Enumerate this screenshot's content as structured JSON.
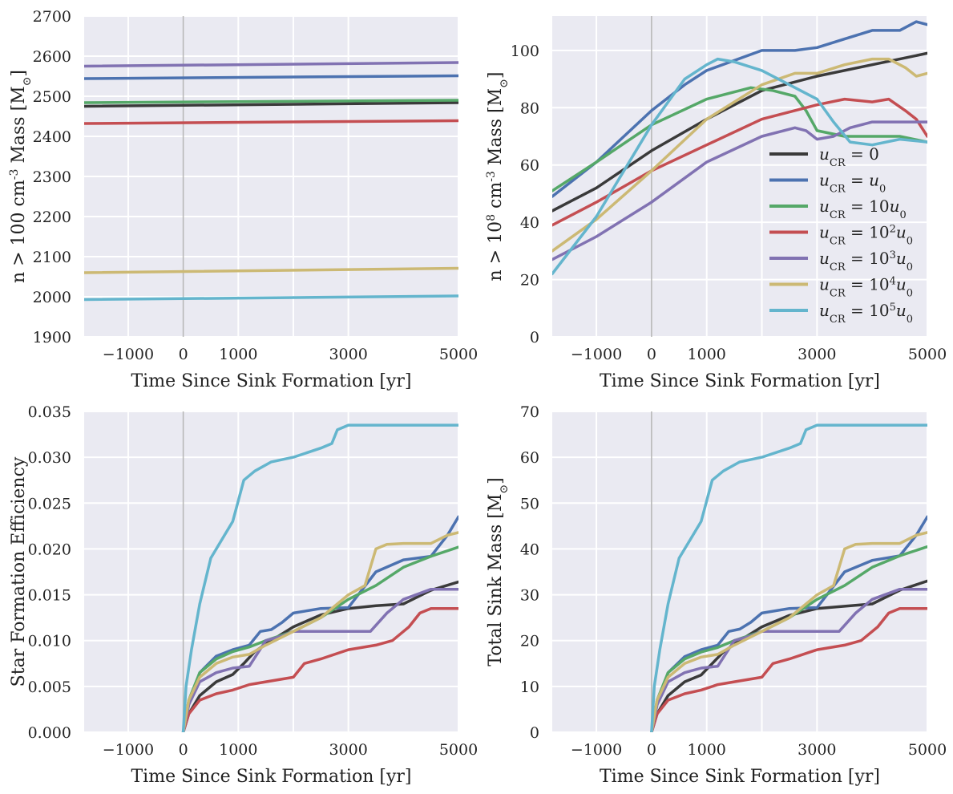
{
  "figure": {
    "colors": {
      "u0x": "#3a3a3a",
      "u1": "#4c72b0",
      "u10": "#55a868",
      "u100": "#c44e52",
      "u1000": "#8172b2",
      "u10000": "#ccb974",
      "u100000": "#64b5cd",
      "panel_bg": "#eaeaf2",
      "grid": "#ffffff",
      "zero_line": "#b8b8b8"
    },
    "legend": {
      "placement": "lower-right of top-right panel",
      "entries": [
        {
          "key": "u0x",
          "text": "u_CR = 0"
        },
        {
          "key": "u1",
          "text": "u_CR = u_0"
        },
        {
          "key": "u10",
          "text": "u_CR = 10u_0"
        },
        {
          "key": "u100",
          "text": "u_CR = 10^2u_0"
        },
        {
          "key": "u1000",
          "text": "u_CR = 10^3u_0"
        },
        {
          "key": "u10000",
          "text": "u_CR = 10^4u_0"
        },
        {
          "key": "u100000",
          "text": "u_CR = 10^5u_0"
        }
      ]
    }
  },
  "chart_data": [
    {
      "type": "line",
      "panel": "top-left",
      "xlabel": "Time Since Sink Formation [yr]",
      "ylabel": "n > 100 cm^-3 Mass [M_sun]",
      "xlim": [
        -1800,
        5000
      ],
      "ylim": [
        1900,
        2700
      ],
      "xticks": [
        -1000,
        0,
        1000,
        3000,
        5000
      ],
      "yticks": [
        1900,
        2000,
        2100,
        2200,
        2300,
        2400,
        2500,
        2600,
        2700
      ],
      "xgrid_extra": [
        2000
      ],
      "grid": true,
      "series": [
        {
          "key": "u0x",
          "x": [
            -1800,
            5000
          ],
          "y": [
            2475,
            2484
          ]
        },
        {
          "key": "u1",
          "x": [
            -1800,
            5000
          ],
          "y": [
            2544,
            2551
          ]
        },
        {
          "key": "u10",
          "x": [
            -1800,
            5000
          ],
          "y": [
            2484,
            2490
          ]
        },
        {
          "key": "u100",
          "x": [
            -1800,
            5000
          ],
          "y": [
            2432,
            2439
          ]
        },
        {
          "key": "u1000",
          "x": [
            -1800,
            5000
          ],
          "y": [
            2575,
            2584
          ]
        },
        {
          "key": "u10000",
          "x": [
            -1800,
            5000
          ],
          "y": [
            2060,
            2071
          ]
        },
        {
          "key": "u100000",
          "x": [
            -1800,
            5000
          ],
          "y": [
            1993,
            2002
          ]
        }
      ]
    },
    {
      "type": "line",
      "panel": "top-right",
      "xlabel": "Time Since Sink Formation [yr]",
      "ylabel": "n > 10^8 cm^-3 Mass [M_sun]",
      "xlim": [
        -1800,
        5000
      ],
      "ylim": [
        0,
        112
      ],
      "xticks": [
        -1000,
        0,
        1000,
        3000,
        5000
      ],
      "yticks": [
        0,
        20,
        40,
        60,
        80,
        100
      ],
      "xgrid_extra": [
        2000
      ],
      "grid": true,
      "series": [
        {
          "key": "u0x",
          "x": [
            -1800,
            -1000,
            0,
            1000,
            2000,
            3000,
            4000,
            5000
          ],
          "y": [
            44,
            52,
            65,
            76,
            86,
            91,
            95,
            99
          ]
        },
        {
          "key": "u1",
          "x": [
            -1800,
            -1000,
            0,
            600,
            1000,
            2000,
            2600,
            3000,
            3500,
            4000,
            4500,
            4800,
            5000
          ],
          "y": [
            49,
            61,
            79,
            88,
            93,
            100,
            100,
            101,
            104,
            107,
            107,
            110,
            109
          ]
        },
        {
          "key": "u10",
          "x": [
            -1800,
            -1000,
            0,
            1000,
            1800,
            2200,
            2600,
            2800,
            3000,
            3500,
            4000,
            4500,
            5000
          ],
          "y": [
            51,
            61,
            74,
            83,
            87,
            86,
            84,
            79,
            72,
            70,
            70,
            70,
            68
          ]
        },
        {
          "key": "u100",
          "x": [
            -1800,
            -1000,
            0,
            1000,
            2000,
            3000,
            3500,
            4000,
            4300,
            4600,
            4800,
            5000
          ],
          "y": [
            39,
            47,
            58,
            67,
            76,
            81,
            83,
            82,
            83,
            79,
            76,
            70
          ]
        },
        {
          "key": "u1000",
          "x": [
            -1800,
            -1000,
            0,
            1000,
            2000,
            2600,
            2800,
            3000,
            3300,
            3600,
            4000,
            4500,
            4800,
            5000
          ],
          "y": [
            27,
            35,
            47,
            61,
            70,
            73,
            72,
            69,
            70,
            73,
            75,
            75,
            75,
            75
          ]
        },
        {
          "key": "u10000",
          "x": [
            -1800,
            -1000,
            0,
            1000,
            2000,
            2600,
            3000,
            3500,
            4000,
            4300,
            4600,
            4800,
            5000
          ],
          "y": [
            30,
            41,
            58,
            76,
            88,
            92,
            92,
            95,
            97,
            97,
            94,
            91,
            92
          ]
        },
        {
          "key": "u100000",
          "x": [
            -1800,
            -1000,
            0,
            600,
            1000,
            1200,
            1500,
            2000,
            2500,
            3000,
            3300,
            3600,
            4000,
            4500,
            5000
          ],
          "y": [
            22,
            42,
            74,
            90,
            95,
            97,
            96,
            93,
            88,
            83,
            75,
            68,
            67,
            69,
            68
          ]
        }
      ]
    },
    {
      "type": "line",
      "panel": "bottom-left",
      "xlabel": "Time Since Sink Formation [yr]",
      "ylabel": "Star Formation Efficiency",
      "xlim": [
        -1800,
        5000
      ],
      "ylim": [
        0,
        0.035
      ],
      "xticks": [
        -1000,
        0,
        1000,
        3000,
        5000
      ],
      "yticks": [
        0.0,
        0.005,
        0.01,
        0.015,
        0.02,
        0.025,
        0.03,
        0.035
      ],
      "ytick_labels": [
        "0.000",
        "0.005",
        "0.010",
        "0.015",
        "0.020",
        "0.025",
        "0.030",
        "0.035"
      ],
      "xgrid_extra": [
        2000
      ],
      "grid": true,
      "series": [
        {
          "key": "u0x",
          "x": [
            0,
            100,
            300,
            600,
            900,
            1100,
            1300,
            1600,
            2000,
            2500,
            3000,
            3500,
            4000,
            4500,
            5000
          ],
          "y": [
            0,
            0.002,
            0.004,
            0.0055,
            0.0063,
            0.0075,
            0.0088,
            0.01,
            0.0115,
            0.0128,
            0.0135,
            0.0138,
            0.014,
            0.0155,
            0.0164
          ]
        },
        {
          "key": "u1",
          "x": [
            0,
            100,
            300,
            600,
            900,
            1200,
            1400,
            1600,
            1800,
            2000,
            2500,
            3000,
            3500,
            4000,
            4500,
            4800,
            5000
          ],
          "y": [
            0,
            0.003,
            0.0065,
            0.0083,
            0.009,
            0.0095,
            0.011,
            0.0112,
            0.012,
            0.013,
            0.0135,
            0.0136,
            0.0175,
            0.0188,
            0.0192,
            0.0215,
            0.0235
          ]
        },
        {
          "key": "u10",
          "x": [
            0,
            100,
            300,
            600,
            900,
            1200,
            1500,
            2000,
            2500,
            3000,
            3500,
            4000,
            4500,
            5000
          ],
          "y": [
            0,
            0.0035,
            0.0065,
            0.008,
            0.0088,
            0.0093,
            0.01,
            0.011,
            0.0125,
            0.0145,
            0.016,
            0.018,
            0.0192,
            0.0202
          ]
        },
        {
          "key": "u100",
          "x": [
            0,
            100,
            300,
            600,
            900,
            1200,
            1500,
            2000,
            2200,
            2500,
            3000,
            3500,
            3800,
            4100,
            4300,
            4500,
            5000
          ],
          "y": [
            0,
            0.002,
            0.0035,
            0.0042,
            0.0046,
            0.0052,
            0.0055,
            0.006,
            0.0075,
            0.008,
            0.009,
            0.0095,
            0.01,
            0.0115,
            0.013,
            0.0135,
            0.0135
          ]
        },
        {
          "key": "u1000",
          "x": [
            0,
            100,
            300,
            600,
            900,
            1200,
            1500,
            1800,
            2000,
            2500,
            3000,
            3400,
            3700,
            4000,
            4500,
            5000
          ],
          "y": [
            0,
            0.003,
            0.0055,
            0.0065,
            0.007,
            0.0072,
            0.01,
            0.0105,
            0.011,
            0.011,
            0.011,
            0.011,
            0.013,
            0.0145,
            0.0156,
            0.0156
          ]
        },
        {
          "key": "u10000",
          "x": [
            0,
            100,
            300,
            600,
            900,
            1200,
            1500,
            2000,
            2500,
            3000,
            3300,
            3500,
            3700,
            4000,
            4500,
            4800,
            5000
          ],
          "y": [
            0,
            0.0035,
            0.006,
            0.0075,
            0.0082,
            0.0085,
            0.0095,
            0.011,
            0.0125,
            0.015,
            0.016,
            0.02,
            0.0205,
            0.0206,
            0.0206,
            0.0215,
            0.0218
          ]
        },
        {
          "key": "u100000",
          "x": [
            0,
            50,
            150,
            300,
            500,
            700,
            900,
            1100,
            1300,
            1600,
            2000,
            2500,
            2700,
            2800,
            3000,
            3500,
            4000,
            4500,
            5000
          ],
          "y": [
            0,
            0.005,
            0.009,
            0.014,
            0.019,
            0.021,
            0.023,
            0.0275,
            0.0285,
            0.0295,
            0.03,
            0.031,
            0.0315,
            0.033,
            0.0335,
            0.0335,
            0.0335,
            0.0335,
            0.0335
          ]
        }
      ]
    },
    {
      "type": "line",
      "panel": "bottom-right",
      "xlabel": "Time Since Sink Formation [yr]",
      "ylabel": "Total Sink Mass [M_sun]",
      "xlim": [
        -1800,
        5000
      ],
      "ylim": [
        0,
        70
      ],
      "xticks": [
        -1000,
        0,
        1000,
        3000,
        5000
      ],
      "yticks": [
        0,
        10,
        20,
        30,
        40,
        50,
        60,
        70
      ],
      "xgrid_extra": [
        2000
      ],
      "grid": true,
      "series": [
        {
          "key": "u0x",
          "x": [
            0,
            100,
            300,
            600,
            900,
            1100,
            1300,
            1600,
            2000,
            2500,
            3000,
            3500,
            4000,
            4500,
            5000
          ],
          "y": [
            0,
            4,
            8,
            11,
            12.5,
            15,
            17.5,
            20,
            23,
            25.5,
            27,
            27.5,
            28,
            31,
            33
          ]
        },
        {
          "key": "u1",
          "x": [
            0,
            100,
            300,
            600,
            900,
            1200,
            1400,
            1600,
            1800,
            2000,
            2500,
            3000,
            3500,
            4000,
            4500,
            4800,
            5000
          ],
          "y": [
            0,
            6,
            13,
            16.5,
            18,
            19,
            22,
            22.5,
            24,
            26,
            27,
            27.2,
            35,
            37.5,
            38.5,
            43,
            47
          ]
        },
        {
          "key": "u10",
          "x": [
            0,
            100,
            300,
            600,
            900,
            1200,
            1500,
            2000,
            2500,
            3000,
            3500,
            4000,
            4500,
            5000
          ],
          "y": [
            0,
            7,
            13,
            16,
            17.5,
            18.5,
            20,
            22,
            25,
            29,
            32,
            36,
            38.5,
            40.5
          ]
        },
        {
          "key": "u100",
          "x": [
            0,
            100,
            300,
            600,
            900,
            1200,
            1500,
            2000,
            2200,
            2500,
            3000,
            3500,
            3800,
            4100,
            4300,
            4500,
            5000
          ],
          "y": [
            0,
            4,
            7,
            8.4,
            9.2,
            10.4,
            11,
            12,
            15,
            16,
            18,
            19,
            20,
            23,
            26,
            27,
            27
          ]
        },
        {
          "key": "u1000",
          "x": [
            0,
            100,
            300,
            600,
            900,
            1200,
            1500,
            1800,
            2000,
            2500,
            3000,
            3400,
            3700,
            4000,
            4500,
            5000
          ],
          "y": [
            0,
            6,
            11,
            13,
            14,
            14.4,
            20,
            21,
            22,
            22,
            22,
            22,
            26,
            29,
            31.2,
            31.2
          ]
        },
        {
          "key": "u10000",
          "x": [
            0,
            100,
            300,
            600,
            900,
            1200,
            1500,
            2000,
            2500,
            3000,
            3300,
            3500,
            3700,
            4000,
            4500,
            4800,
            5000
          ],
          "y": [
            0,
            7,
            12,
            15,
            16.4,
            17,
            19,
            22,
            25,
            30,
            32,
            40,
            41,
            41.2,
            41.2,
            43,
            43.6
          ]
        },
        {
          "key": "u100000",
          "x": [
            0,
            50,
            150,
            300,
            500,
            700,
            900,
            1100,
            1300,
            1600,
            2000,
            2500,
            2700,
            2800,
            3000,
            3500,
            4000,
            4500,
            5000
          ],
          "y": [
            0,
            10,
            18,
            28,
            38,
            42,
            46,
            55,
            57,
            59,
            60,
            62,
            63,
            66,
            67,
            67,
            67,
            67,
            67
          ]
        }
      ]
    }
  ]
}
